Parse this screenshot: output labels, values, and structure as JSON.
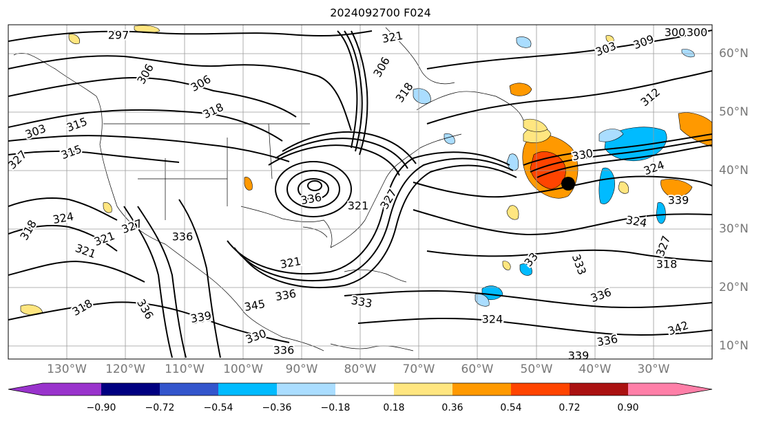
{
  "title": "2024092700 F024",
  "colors": {
    "contour": "#000000",
    "frame": "#000000",
    "graticule": "#9a9a9a",
    "axis_label": "#777777",
    "map_background": "#ffffff",
    "cyclone_marker": "#000000"
  },
  "map": {
    "longitude_labels": [
      "130°W",
      "120°W",
      "110°W",
      "100°W",
      "90°W",
      "80°W",
      "70°W",
      "60°W",
      "50°W",
      "40°W",
      "30°W"
    ],
    "latitude_labels": [
      "60°N",
      "50°N",
      "40°N",
      "30°N",
      "20°N",
      "10°N"
    ],
    "contour_labels": [
      "297",
      "321",
      "300",
      "306",
      "303",
      "309",
      "306",
      "312",
      "318",
      "318",
      "306",
      "300",
      "303",
      "315",
      "315",
      "330",
      "324",
      "327",
      "318",
      "321",
      "336",
      "324",
      "321",
      "327",
      "321",
      "336",
      "318",
      "324",
      "327",
      "339",
      "336",
      "345",
      "321",
      "333",
      "336",
      "336",
      "339",
      "330",
      "336",
      "339",
      "324",
      "333",
      "342",
      "336",
      "339",
      "318",
      "33",
      "327"
    ]
  },
  "colorbar": {
    "ticks": [
      "−0.90",
      "−0.72",
      "−0.54",
      "−0.36",
      "−0.18",
      "0.18",
      "0.36",
      "0.54",
      "0.72",
      "0.90"
    ],
    "colors": [
      "#9933cc",
      "#000080",
      "#3355cc",
      "#00bbff",
      "#aaddff",
      "#ffffff",
      "#ffe680",
      "#ff9900",
      "#ff4400",
      "#aa1111",
      "#ff7fa8"
    ]
  }
}
